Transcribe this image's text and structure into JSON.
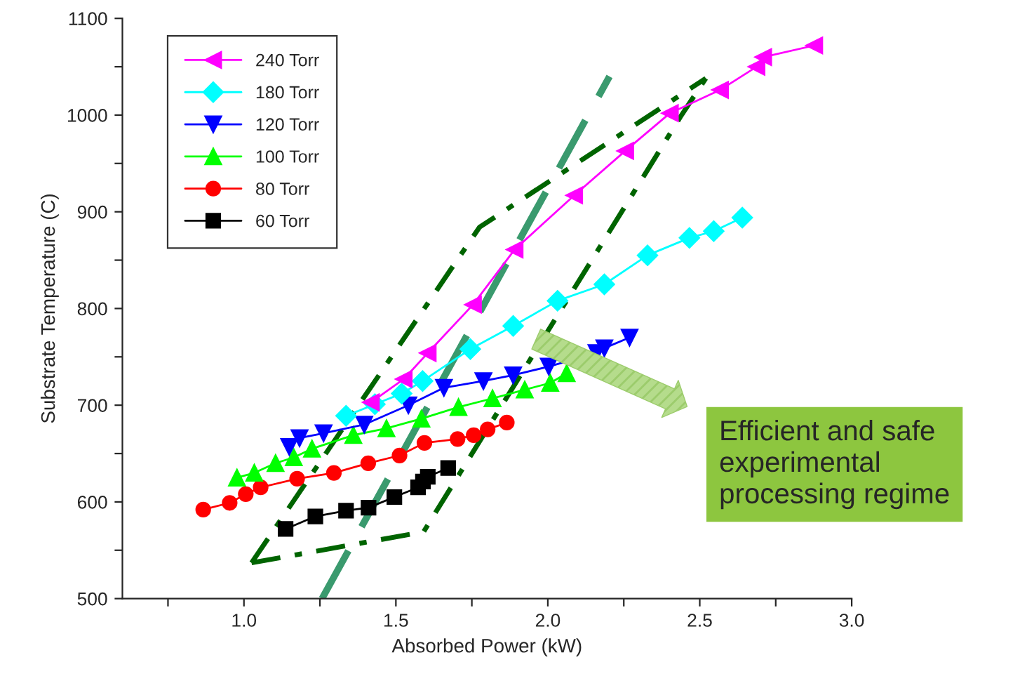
{
  "chart_data": {
    "type": "line",
    "xlabel": "Absorbed Power (kW)",
    "ylabel": "Substrate Temperature (C)",
    "xlim": [
      0.6,
      3.0
    ],
    "ylim": [
      500,
      1100
    ],
    "xticks": [
      {
        "value": 0.75,
        "label": null
      },
      {
        "value": 1.0,
        "label": "1.0"
      },
      {
        "value": 1.25,
        "label": null
      },
      {
        "value": 1.5,
        "label": "1.5"
      },
      {
        "value": 1.75,
        "label": null
      },
      {
        "value": 2.0,
        "label": "2.0"
      },
      {
        "value": 2.25,
        "label": null
      },
      {
        "value": 2.5,
        "label": "2.5"
      },
      {
        "value": 2.75,
        "label": null
      },
      {
        "value": 3.0,
        "label": "3.0"
      }
    ],
    "yticks": [
      500,
      {
        "value": 550,
        "label": null
      },
      600,
      {
        "value": 650,
        "label": null
      },
      700,
      {
        "value": 750,
        "label": null
      },
      800,
      {
        "value": 850,
        "label": null
      },
      900,
      {
        "value": 950,
        "label": null
      },
      1000,
      {
        "value": 1050,
        "label": null
      },
      1100
    ],
    "grid": false,
    "legend": "top left",
    "annotations": [
      "Efficient and safe\nexperimental\nprocessing regime"
    ],
    "series": [
      {
        "name": "240 Torr",
        "color": "#ff00ff",
        "marker": "triangle_left",
        "x": [
          1.418,
          1.526,
          1.605,
          1.754,
          1.891,
          2.087,
          2.255,
          2.402,
          2.567,
          2.687,
          2.709,
          2.877
        ],
        "values": [
          703,
          727,
          754,
          804,
          861,
          917,
          963,
          1002,
          1026,
          1050,
          1060,
          1072
        ]
      },
      {
        "name": "180 Torr",
        "color": "#00ffff",
        "marker": "diamond",
        "x": [
          1.336,
          1.431,
          1.519,
          1.588,
          1.745,
          1.886,
          2.032,
          2.186,
          2.328,
          2.466,
          2.546,
          2.64
        ],
        "values": [
          689,
          701,
          712,
          725,
          758,
          782,
          808,
          825,
          855,
          873,
          880,
          894
        ]
      },
      {
        "name": "120 Torr",
        "color": "#0000ff",
        "marker": "triangle_down",
        "x": [
          1.149,
          1.183,
          1.262,
          1.396,
          1.541,
          1.658,
          1.788,
          1.886,
          2.003,
          2.16,
          2.186,
          2.269
        ],
        "values": [
          657,
          666,
          671,
          680,
          700,
          718,
          725,
          731,
          740,
          754,
          759,
          770
        ]
      },
      {
        "name": "100 Torr",
        "color": "#00ff00",
        "marker": "triangle",
        "x": [
          0.977,
          1.034,
          1.104,
          1.164,
          1.224,
          1.36,
          1.469,
          1.584,
          1.706,
          1.818,
          1.924,
          2.008,
          2.062
        ],
        "values": [
          625,
          630,
          640,
          646,
          655,
          669,
          676,
          686,
          698,
          707,
          716,
          723,
          733
        ]
      },
      {
        "name": "80 Torr",
        "color": "#ff0000",
        "marker": "circle",
        "x": [
          0.866,
          0.953,
          1.006,
          1.055,
          1.175,
          1.296,
          1.409,
          1.512,
          1.594,
          1.703,
          1.756,
          1.802,
          1.865
        ],
        "values": [
          592,
          599,
          608,
          615,
          624,
          630,
          640,
          648,
          661,
          665,
          669,
          675,
          682
        ]
      },
      {
        "name": "60 Torr",
        "color": "#000000",
        "marker": "square",
        "x": [
          1.137,
          1.235,
          1.336,
          1.41,
          1.495,
          1.573,
          1.589,
          1.605,
          1.672
        ],
        "values": [
          572,
          585,
          591,
          594,
          605,
          615,
          621,
          626,
          635
        ]
      },
      {
        "color": "#3a9a6e",
        "marker": "none",
        "line_style": "dashed",
        "x": [
          1.257,
          2.203
        ],
        "values": [
          500,
          1040
        ]
      },
      {
        "color": "#006400",
        "marker": "none",
        "line_style": "dashdot",
        "x": [
          1.025,
          1.775,
          2.52
        ],
        "values": [
          537,
          884,
          1038
        ]
      },
      {
        "color": "#006400",
        "marker": "none",
        "line_style": "dashdot",
        "x": [
          1.025,
          1.591,
          2.436,
          2.52
        ],
        "values": [
          537,
          569,
          998,
          1038
        ]
      }
    ]
  }
}
